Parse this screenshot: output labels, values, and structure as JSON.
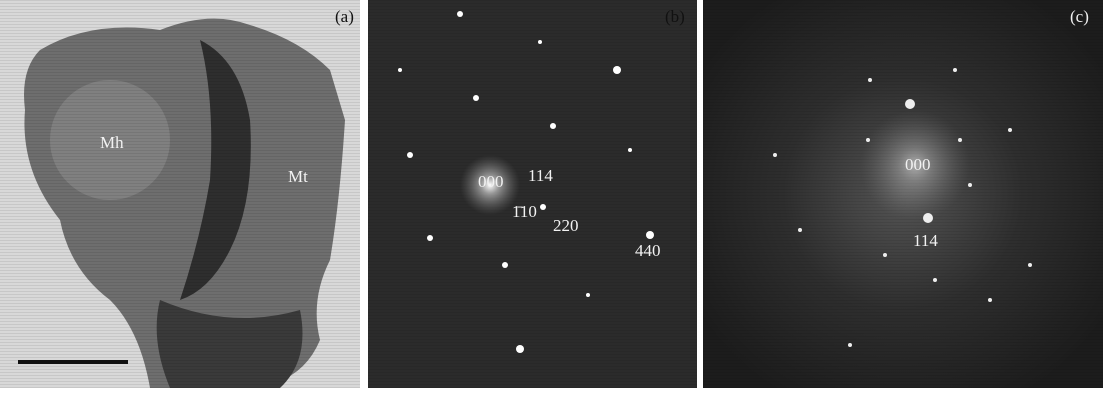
{
  "panels": [
    {
      "label": "(a)",
      "annotations": [
        "Mh",
        "Mt"
      ]
    },
    {
      "label": "(b)",
      "annotations": [
        "000",
        "114",
        "1̄10",
        "220",
        "440"
      ]
    },
    {
      "label": "(c)",
      "annotations": [
        "000",
        "114"
      ]
    }
  ]
}
